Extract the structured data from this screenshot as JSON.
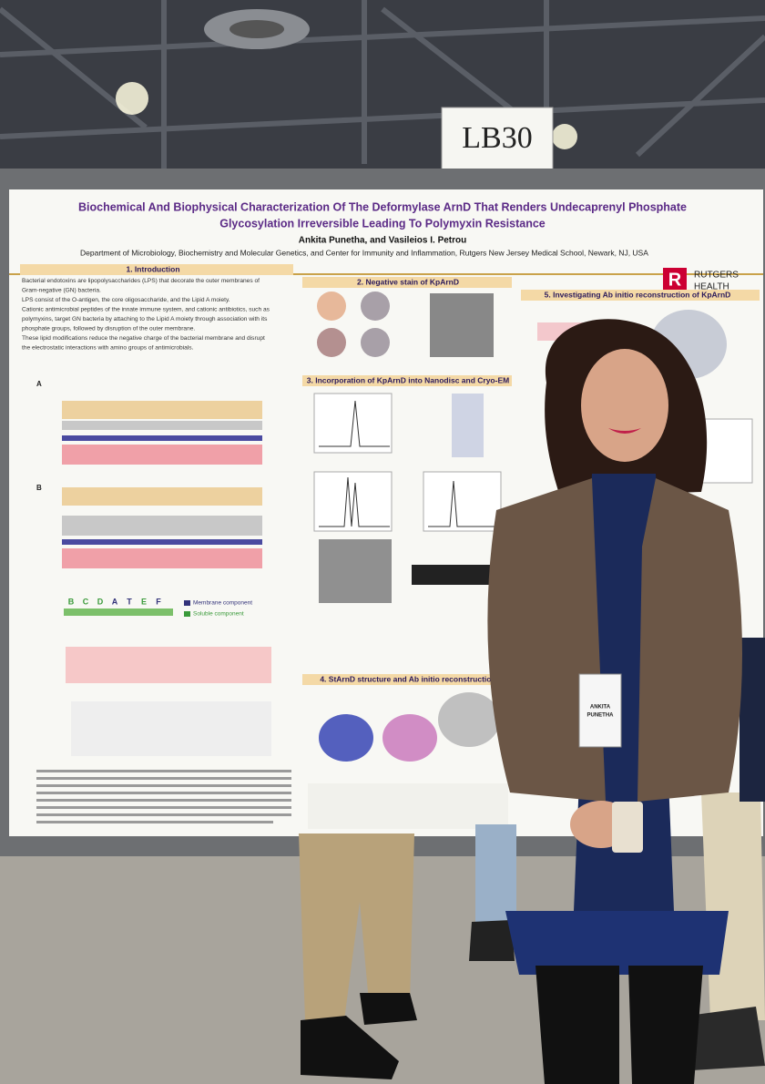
{
  "sign": "LB30",
  "poster": {
    "title": [
      "Biochemical And Biophysical Characterization Of The Deformylase ArnD That Renders Undecaprenyl Phosphate",
      "Glycosylation Irreversible Leading To Polymyxin Resistance"
    ],
    "authors": "Ankita Punetha, and Vasileios I. Petrou",
    "affiliation": "Department of Microbiology, Biochemistry and Molecular Genetics, and Center for Immunity and Inflammation, Rutgers New Jersey Medical School, Newark, NJ, USA",
    "logo": {
      "letter": "R",
      "name": "RUTGERS",
      "sub": "HEALTH"
    },
    "sections": [
      "1. Introduction",
      "2. Negative stain of KpArnD",
      "3. Incorporation of KpArnD into Nanodisc and Cryo-EM",
      "4. StArnD structure and Ab initio reconstruction",
      "5. Investigating Ab initio reconstruction of KpArnD"
    ],
    "intro": [
      "Bacterial endotoxins are lipopolysaccharides (LPS) that decorate the outer membranes of",
      "Gram-negative (GN) bacteria.",
      "LPS consist of the O-antigen, the core oligosaccharide, and the Lipid A moiety.",
      "Cationic antimicrobial peptides of the innate immune system, and cationic antibiotics, such as",
      "polymyxins, target GN bacteria by attaching to the Lipid A moiety through association with its",
      "phosphate groups, followed by disruption of the outer membrane.",
      "These lipid modifications reduce the negative charge of the bacterial membrane and disrupt",
      "the electrostatic interactions with amino groups of antimicrobials."
    ],
    "operon": [
      "B",
      "C",
      "D",
      "A",
      "T",
      "E",
      "F"
    ],
    "legend": [
      "Membrane component",
      "Soluble component"
    ],
    "panel_labels": [
      "A",
      "B"
    ]
  },
  "badge": {
    "name": [
      "ANKITA",
      "PUNETHA"
    ]
  }
}
